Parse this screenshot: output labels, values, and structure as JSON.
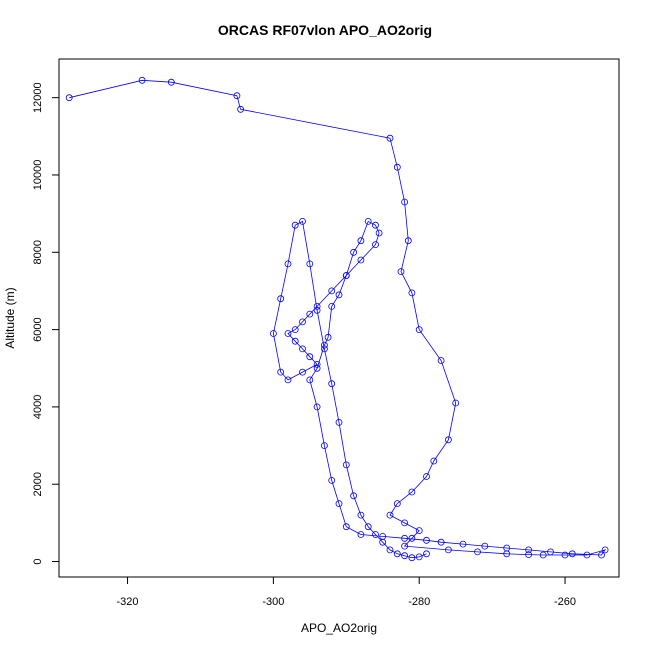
{
  "chart_data": {
    "type": "scatter",
    "title": "ORCAS RF07vlon APO_AO2orig",
    "xlabel": "APO_AO2orig",
    "ylabel": "Altitude (m)",
    "xlim": [
      -329.4,
      -252.6
    ],
    "ylim": [
      -400,
      13000
    ],
    "x_ticks": [
      -320,
      -300,
      -280,
      -260
    ],
    "y_ticks": [
      0,
      2000,
      4000,
      6000,
      8000,
      10000,
      12000
    ],
    "grid": false,
    "connected": true,
    "colors": {
      "series": "#0000ff"
    },
    "series": [
      {
        "x": [
          -328,
          -318,
          -314,
          -305,
          -304.5,
          -284,
          -283,
          -282,
          -281.5,
          -282.5,
          -281,
          -280,
          -277,
          -275,
          -276,
          -278,
          -279,
          -281,
          -283,
          -284,
          -282,
          -280,
          -281,
          -282,
          -276,
          -272,
          -268,
          -265,
          -263,
          -260,
          -257,
          -254.5,
          -255,
          -259,
          -262,
          -265,
          -268,
          -271,
          -274,
          -277,
          -279,
          -282,
          -285,
          -288,
          -290,
          -291,
          -292,
          -293,
          -294,
          -295,
          -294,
          -293,
          -292.5,
          -292,
          -291,
          -290,
          -289,
          -288,
          -287,
          -286,
          -285.5,
          -286,
          -288,
          -290,
          -292,
          -294,
          -295,
          -296,
          -297,
          -298,
          -297,
          -296,
          -295,
          -294,
          -296,
          -298,
          -299,
          -300,
          -299,
          -298,
          -297,
          -296,
          -295,
          -294,
          -293,
          -292,
          -291,
          -290,
          -289,
          -288,
          -287,
          -286,
          -285,
          -284,
          -283,
          -282,
          -281,
          -280,
          -279
        ],
        "y": [
          12000,
          12450,
          12400,
          12050,
          11700,
          10950,
          10200,
          9300,
          8300,
          7500,
          6950,
          6000,
          5200,
          4100,
          3150,
          2600,
          2200,
          1800,
          1500,
          1200,
          1000,
          800,
          600,
          400,
          300,
          250,
          200,
          180,
          170,
          170,
          170,
          300,
          170,
          200,
          250,
          300,
          350,
          400,
          450,
          500,
          550,
          600,
          650,
          700,
          900,
          1500,
          2100,
          3000,
          4000,
          4700,
          5000,
          5600,
          5800,
          6600,
          6900,
          7400,
          8000,
          8300,
          8800,
          8700,
          8500,
          8200,
          7800,
          7400,
          7000,
          6600,
          6400,
          6200,
          6000,
          5900,
          5700,
          5500,
          5300,
          5100,
          4900,
          4700,
          4900,
          5900,
          6800,
          7700,
          8700,
          8800,
          7700,
          6500,
          5500,
          4600,
          3600,
          2500,
          1700,
          1200,
          900,
          700,
          500,
          300,
          200,
          150,
          100,
          120,
          200
        ]
      }
    ]
  }
}
